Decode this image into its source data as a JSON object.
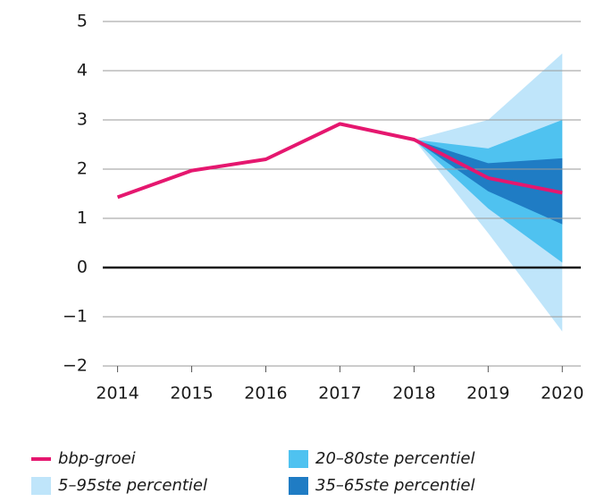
{
  "chart_data": {
    "type": "fan",
    "x": [
      2014,
      2015,
      2016,
      2017,
      2018,
      2019,
      2020
    ],
    "xlim": [
      2013.8,
      2020.25
    ],
    "xticks": [
      2014,
      2015,
      2016,
      2017,
      2018,
      2019,
      2020
    ],
    "ylim": [
      -2,
      5
    ],
    "yticks": [
      {
        "value": -2,
        "label": "−2"
      },
      {
        "value": -1,
        "label": "−1"
      },
      0,
      1,
      2,
      3,
      4,
      5
    ],
    "grid": true,
    "bands": [
      {
        "name": "5–95ste percentiel",
        "color": "#bfe5fa",
        "lower": [
          null,
          null,
          null,
          null,
          2.6,
          0.7,
          -1.3
        ],
        "upper": [
          null,
          null,
          null,
          null,
          2.6,
          3.0,
          4.35
        ]
      },
      {
        "name": "20–80ste percentiel",
        "color": "#4fc2f0",
        "lower": [
          null,
          null,
          null,
          null,
          2.6,
          1.2,
          0.1
        ],
        "upper": [
          null,
          null,
          null,
          null,
          2.6,
          2.42,
          3.0
        ]
      },
      {
        "name": "35–65ste percentiel",
        "color": "#1f7cc4",
        "lower": [
          null,
          null,
          null,
          null,
          2.6,
          1.55,
          0.88
        ],
        "upper": [
          null,
          null,
          null,
          null,
          2.6,
          2.12,
          2.22
        ]
      }
    ],
    "series": [
      {
        "name": "bbp-groei",
        "color": "#e5176f",
        "values": [
          1.43,
          1.97,
          2.2,
          2.92,
          2.6,
          1.82,
          1.52
        ]
      }
    ]
  }
}
